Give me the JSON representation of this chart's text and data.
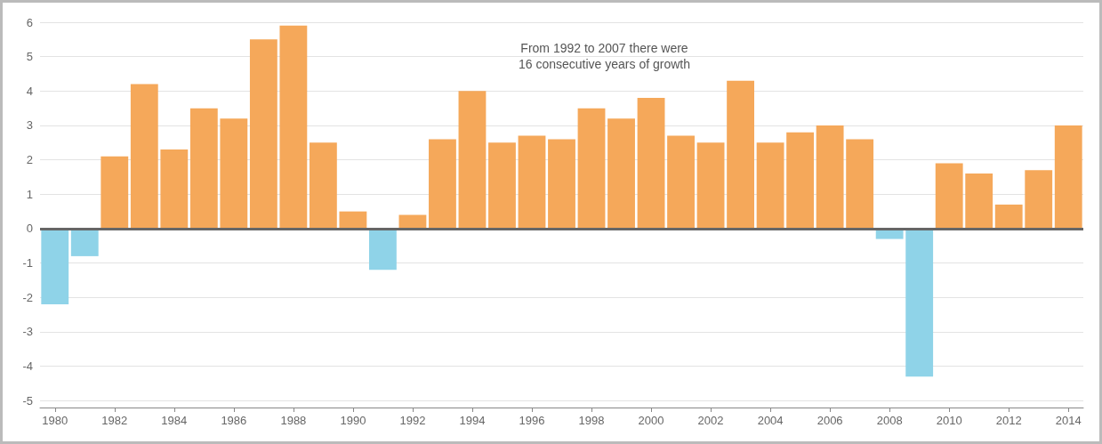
{
  "chart_data": {
    "type": "bar",
    "categories": [
      "1980",
      null,
      "1982",
      null,
      "1984",
      null,
      "1986",
      null,
      "1988",
      null,
      "1990",
      null,
      "1992",
      null,
      "1994",
      null,
      "1996",
      null,
      "1998",
      null,
      "2000",
      null,
      "2002",
      null,
      "2004",
      null,
      "2006",
      null,
      "2008",
      null,
      "2010",
      null,
      "2012",
      null,
      "2014"
    ],
    "values": [
      -2.2,
      -0.8,
      2.1,
      4.2,
      2.3,
      3.5,
      3.2,
      5.5,
      5.9,
      2.5,
      0.5,
      -1.2,
      0.4,
      2.6,
      4.0,
      2.5,
      2.7,
      2.6,
      3.5,
      3.2,
      3.8,
      2.7,
      2.5,
      4.3,
      2.5,
      2.8,
      3.0,
      2.6,
      -0.3,
      -4.3,
      1.9,
      1.6,
      0.7,
      1.7,
      3.0
    ],
    "colors": [
      "#8fd3e8",
      "#8fd3e8",
      "#f5a85a",
      "#f5a85a",
      "#f5a85a",
      "#f5a85a",
      "#f5a85a",
      "#f5a85a",
      "#f5a85a",
      "#f5a85a",
      "#f5a85a",
      "#8fd3e8",
      "#f5a85a",
      "#f5a85a",
      "#f5a85a",
      "#f5a85a",
      "#f5a85a",
      "#f5a85a",
      "#f5a85a",
      "#f5a85a",
      "#f5a85a",
      "#f5a85a",
      "#f5a85a",
      "#f5a85a",
      "#f5a85a",
      "#f5a85a",
      "#f5a85a",
      "#f5a85a",
      "#8fd3e8",
      "#8fd3e8",
      "#f5a85a",
      "#f5a85a",
      "#f5a85a",
      "#f5a85a",
      "#f5a85a"
    ],
    "ylim": [
      -5.2,
      6
    ],
    "yticks": [
      -5,
      -4,
      -3,
      -2,
      -1,
      0,
      1,
      2,
      3,
      4,
      5,
      6
    ],
    "grid": "y",
    "ref_lines": [
      {
        "axis": "y",
        "value": 0,
        "color": "#666666"
      }
    ],
    "annotations": [
      "From 1992 to 2007 there were\n16 consecutive years of growth"
    ]
  }
}
